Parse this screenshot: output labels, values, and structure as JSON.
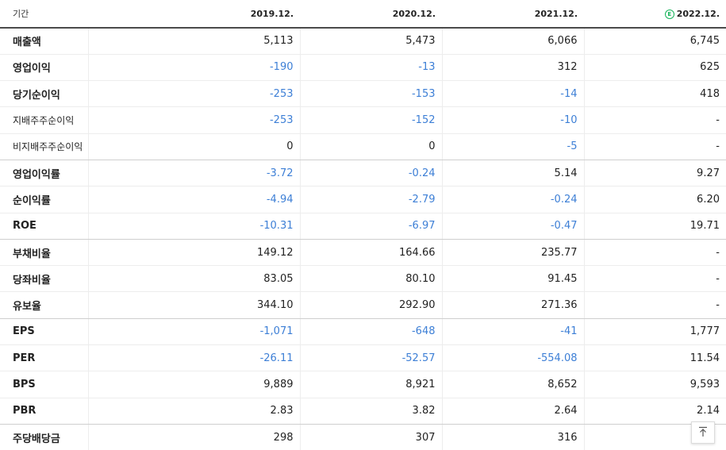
{
  "header": {
    "label": "기간",
    "periods": [
      "2019.12.",
      "2020.12.",
      "2021.12.",
      "2022.12."
    ],
    "estimate_mark": "E",
    "estimate_color": "#16b35a"
  },
  "colors": {
    "negative": "#3d7fd6",
    "text": "#222222",
    "estimate": "#16b35a"
  },
  "rows": [
    {
      "label": "매출액",
      "values": [
        "5,113",
        "5,473",
        "6,066",
        "6,745"
      ]
    },
    {
      "label": "영업이익",
      "values": [
        "-190",
        "-13",
        "312",
        "625"
      ]
    },
    {
      "label": "당기순이익",
      "values": [
        "-253",
        "-153",
        "-14",
        "418"
      ]
    },
    {
      "label": "지배주주순이익",
      "values": [
        "-253",
        "-152",
        "-10",
        "-"
      ]
    },
    {
      "label": "비지배주주순이익",
      "values": [
        "0",
        "0",
        "-5",
        "-"
      ]
    },
    {
      "label": "영업이익률",
      "values": [
        "-3.72",
        "-0.24",
        "5.14",
        "9.27"
      ]
    },
    {
      "label": "순이익률",
      "values": [
        "-4.94",
        "-2.79",
        "-0.24",
        "6.20"
      ]
    },
    {
      "label": "ROE",
      "values": [
        "-10.31",
        "-6.97",
        "-0.47",
        "19.71"
      ]
    },
    {
      "label": "부채비율",
      "values": [
        "149.12",
        "164.66",
        "235.77",
        "-"
      ]
    },
    {
      "label": "당좌비율",
      "values": [
        "83.05",
        "80.10",
        "91.45",
        "-"
      ]
    },
    {
      "label": "유보율",
      "values": [
        "344.10",
        "292.90",
        "271.36",
        "-"
      ]
    },
    {
      "label": "EPS",
      "values": [
        "-1,071",
        "-648",
        "-41",
        "1,777"
      ]
    },
    {
      "label": "PER",
      "values": [
        "-26.11",
        "-52.57",
        "-554.08",
        "11.54"
      ]
    },
    {
      "label": "BPS",
      "values": [
        "9,889",
        "8,921",
        "8,652",
        "9,593"
      ]
    },
    {
      "label": "PBR",
      "values": [
        "2.83",
        "3.82",
        "2.64",
        "2.14"
      ]
    },
    {
      "label": "주당배당금",
      "values": [
        "298",
        "307",
        "316",
        ""
      ]
    }
  ],
  "scroll_top_icon": "arrow-up-to-line-icon"
}
